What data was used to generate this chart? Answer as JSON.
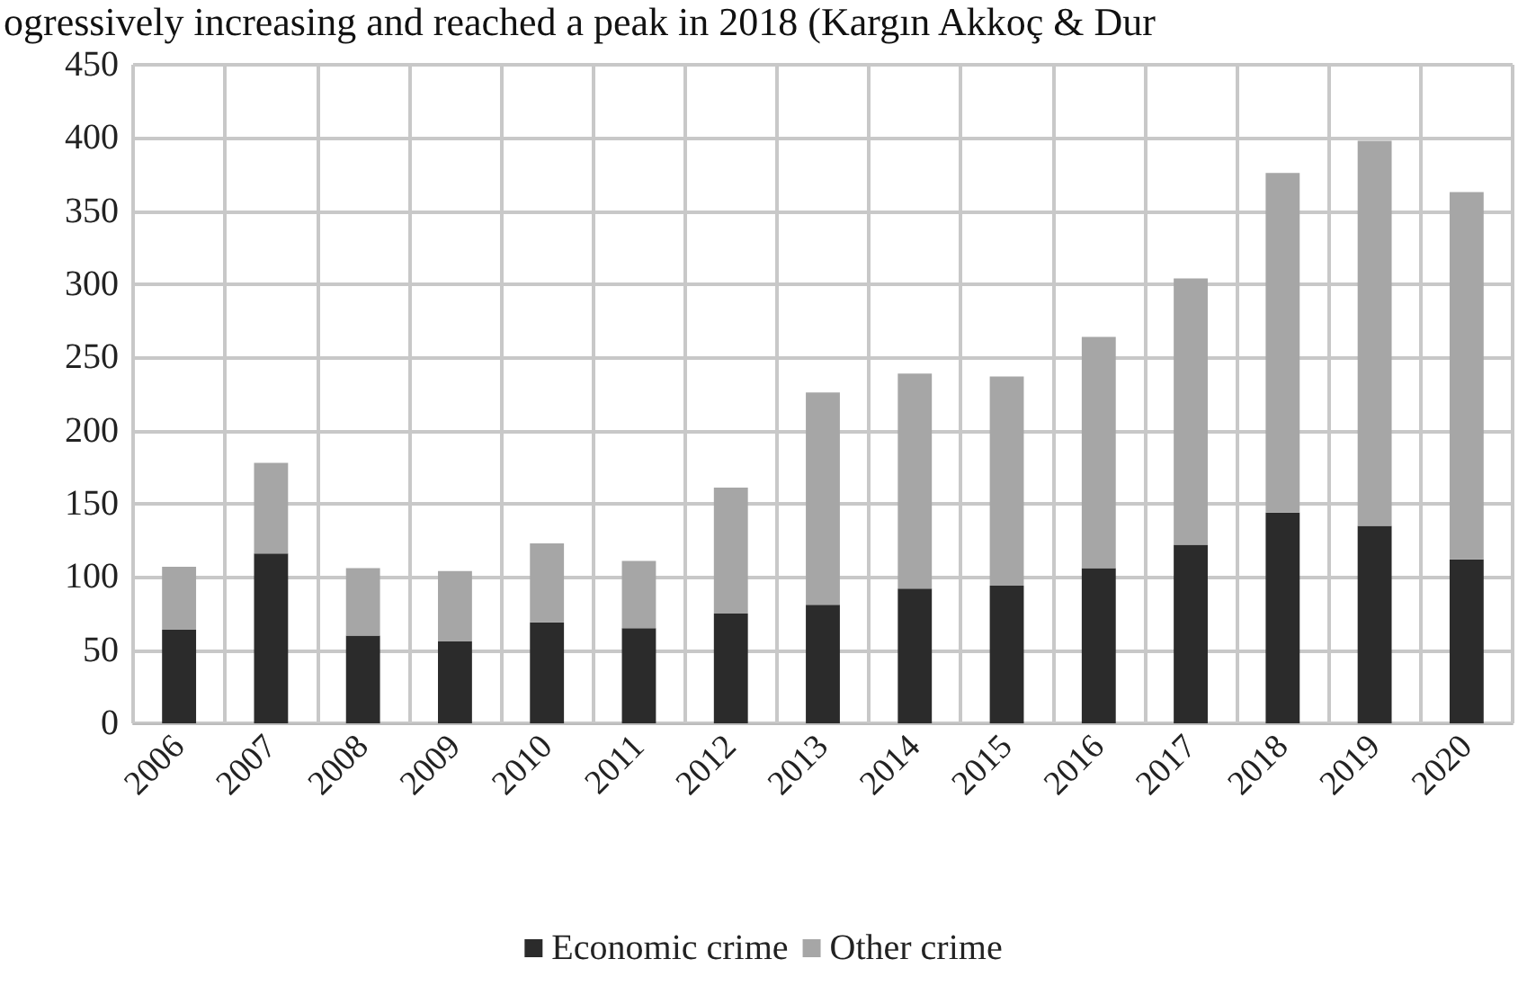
{
  "chart_data": {
    "type": "bar",
    "stacked": true,
    "annotations": [
      "ogressively increasing and reached a peak in 2018 (Kargın Akkoç & Dur"
    ],
    "categories": [
      "2006",
      "2007",
      "2008",
      "2009",
      "2010",
      "2011",
      "2012",
      "2013",
      "2014",
      "2015",
      "2016",
      "2017",
      "2018",
      "2019",
      "2020"
    ],
    "series": [
      {
        "name": "Economic crime",
        "color": "#2b2b2b",
        "values": [
          64,
          116,
          60,
          56,
          69,
          65,
          75,
          81,
          92,
          94,
          106,
          122,
          144,
          135,
          112
        ]
      },
      {
        "name": "Other crime",
        "color": "#a6a6a6",
        "values": [
          43,
          62,
          46,
          48,
          54,
          46,
          86,
          145,
          147,
          143,
          158,
          182,
          232,
          263,
          251
        ]
      }
    ],
    "ylim": [
      0,
      450
    ],
    "yticks": [
      0,
      50,
      100,
      150,
      200,
      250,
      300,
      350,
      400,
      450
    ],
    "grid": true,
    "legend": "bottom"
  }
}
